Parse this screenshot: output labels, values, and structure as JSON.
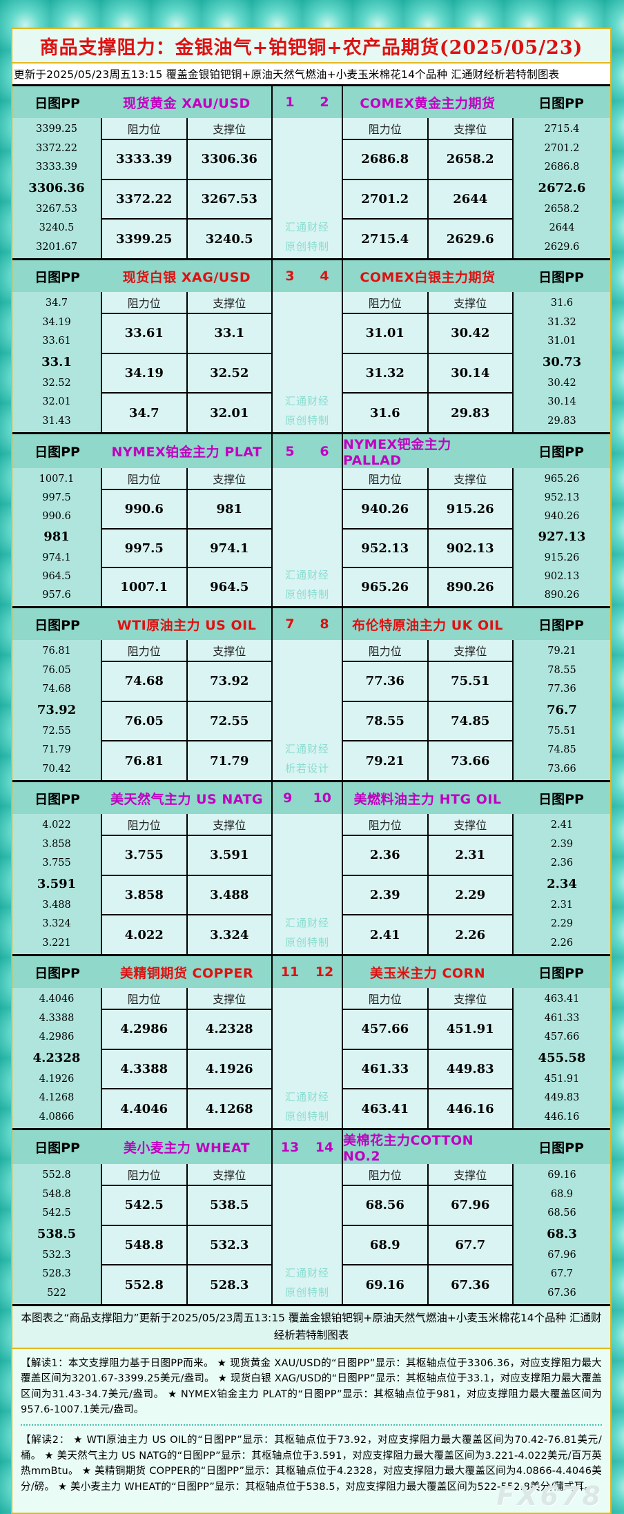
{
  "header": {
    "title": "商品支撑阻力：金银油气+铂钯铜+农产品期货(2025/05/23)",
    "subtitle": "更新于2025/05/23周五13:15  覆盖金银铂钯铜+原油天然气燃油+小麦玉米棉花14个品种  汇通财经析若特制图表"
  },
  "labels": {
    "pp": "日图PP",
    "resistance": "阻力位",
    "support": "支撑位"
  },
  "colors": {
    "accent_magenta": "#c000c0",
    "accent_red": "#dd1111",
    "header_strip": "#8fd8ca",
    "pp_column": "#b0e5dd",
    "cell": "#d9f4f2",
    "watermark": "#8adcd0",
    "gold_border": "#e3b71e"
  },
  "chart_data": {
    "type": "table",
    "title": "商品支撑阻力：金银油气+铂钯铜+农产品期货(2025/05/23)",
    "updated": "2025/05/23周五13:15",
    "sections": [
      {
        "index_left": "1",
        "index_right": "2",
        "accent": "#c000c0",
        "watermark": [
          "汇通财经",
          "原创特制"
        ],
        "left": {
          "title": "现货黄金 XAU/USD",
          "pp": [
            "3399.25",
            "3372.22",
            "3333.39",
            "3306.36",
            "3267.53",
            "3240.5",
            "3201.67"
          ],
          "rows": [
            [
              "3333.39",
              "3306.36"
            ],
            [
              "3372.22",
              "3267.53"
            ],
            [
              "3399.25",
              "3240.5"
            ]
          ]
        },
        "right": {
          "title": "COMEX黄金主力期货",
          "pp": [
            "2715.4",
            "2701.2",
            "2686.8",
            "2672.6",
            "2658.2",
            "2644",
            "2629.6"
          ],
          "rows": [
            [
              "2686.8",
              "2658.2"
            ],
            [
              "2701.2",
              "2644"
            ],
            [
              "2715.4",
              "2629.6"
            ]
          ]
        }
      },
      {
        "index_left": "3",
        "index_right": "4",
        "accent": "#dd1111",
        "watermark": [
          "汇通财经",
          "原创特制"
        ],
        "left": {
          "title": "现货白银 XAG/USD",
          "pp": [
            "34.7",
            "34.19",
            "33.61",
            "33.1",
            "32.52",
            "32.01",
            "31.43"
          ],
          "rows": [
            [
              "33.61",
              "33.1"
            ],
            [
              "34.19",
              "32.52"
            ],
            [
              "34.7",
              "32.01"
            ]
          ]
        },
        "right": {
          "title": "COMEX白银主力期货",
          "pp": [
            "31.6",
            "31.32",
            "31.01",
            "30.73",
            "30.42",
            "30.14",
            "29.83"
          ],
          "rows": [
            [
              "31.01",
              "30.42"
            ],
            [
              "31.32",
              "30.14"
            ],
            [
              "31.6",
              "29.83"
            ]
          ]
        }
      },
      {
        "index_left": "5",
        "index_right": "6",
        "accent": "#c000c0",
        "watermark": [
          "汇通财经",
          "原创特制"
        ],
        "left": {
          "title": "NYMEX铂金主力 PLAT",
          "pp": [
            "1007.1",
            "997.5",
            "990.6",
            "981",
            "974.1",
            "964.5",
            "957.6"
          ],
          "rows": [
            [
              "990.6",
              "981"
            ],
            [
              "997.5",
              "974.1"
            ],
            [
              "1007.1",
              "964.5"
            ]
          ]
        },
        "right": {
          "title": "NYMEX钯金主力 PALLAD",
          "pp": [
            "965.26",
            "952.13",
            "940.26",
            "927.13",
            "915.26",
            "902.13",
            "890.26"
          ],
          "rows": [
            [
              "940.26",
              "915.26"
            ],
            [
              "952.13",
              "902.13"
            ],
            [
              "965.26",
              "890.26"
            ]
          ]
        }
      },
      {
        "index_left": "7",
        "index_right": "8",
        "accent": "#dd1111",
        "watermark": [
          "汇通财经",
          "析若设计"
        ],
        "left": {
          "title": "WTI原油主力 US OIL",
          "pp": [
            "76.81",
            "76.05",
            "74.68",
            "73.92",
            "72.55",
            "71.79",
            "70.42"
          ],
          "rows": [
            [
              "74.68",
              "73.92"
            ],
            [
              "76.05",
              "72.55"
            ],
            [
              "76.81",
              "71.79"
            ]
          ]
        },
        "right": {
          "title": "布伦特原油主力 UK OIL",
          "pp": [
            "79.21",
            "78.55",
            "77.36",
            "76.7",
            "75.51",
            "74.85",
            "73.66"
          ],
          "rows": [
            [
              "77.36",
              "75.51"
            ],
            [
              "78.55",
              "74.85"
            ],
            [
              "79.21",
              "73.66"
            ]
          ]
        }
      },
      {
        "index_left": "9",
        "index_right": "10",
        "accent": "#c000c0",
        "watermark": [
          "汇通财经",
          "原创特制"
        ],
        "left": {
          "title": "美天然气主力 US NATG",
          "pp": [
            "4.022",
            "3.858",
            "3.755",
            "3.591",
            "3.488",
            "3.324",
            "3.221"
          ],
          "rows": [
            [
              "3.755",
              "3.591"
            ],
            [
              "3.858",
              "3.488"
            ],
            [
              "4.022",
              "3.324"
            ]
          ]
        },
        "right": {
          "title": "美燃料油主力 HTG OIL",
          "pp": [
            "2.41",
            "2.39",
            "2.36",
            "2.34",
            "2.31",
            "2.29",
            "2.26"
          ],
          "rows": [
            [
              "2.36",
              "2.31"
            ],
            [
              "2.39",
              "2.29"
            ],
            [
              "2.41",
              "2.26"
            ]
          ]
        }
      },
      {
        "index_left": "11",
        "index_right": "12",
        "accent": "#dd1111",
        "watermark": [
          "汇通财经",
          "原创特制"
        ],
        "left": {
          "title": "美精铜期货 COPPER",
          "pp": [
            "4.4046",
            "4.3388",
            "4.2986",
            "4.2328",
            "4.1926",
            "4.1268",
            "4.0866"
          ],
          "rows": [
            [
              "4.2986",
              "4.2328"
            ],
            [
              "4.3388",
              "4.1926"
            ],
            [
              "4.4046",
              "4.1268"
            ]
          ]
        },
        "right": {
          "title": "美玉米主力 CORN",
          "pp": [
            "463.41",
            "461.33",
            "457.66",
            "455.58",
            "451.91",
            "449.83",
            "446.16"
          ],
          "rows": [
            [
              "457.66",
              "451.91"
            ],
            [
              "461.33",
              "449.83"
            ],
            [
              "463.41",
              "446.16"
            ]
          ]
        }
      },
      {
        "index_left": "13",
        "index_right": "14",
        "accent": "#c000c0",
        "watermark": [
          "汇通财经",
          "原创特制"
        ],
        "left": {
          "title": "美小麦主力 WHEAT",
          "pp": [
            "552.8",
            "548.8",
            "542.5",
            "538.5",
            "532.3",
            "528.3",
            "522"
          ],
          "rows": [
            [
              "542.5",
              "538.5"
            ],
            [
              "548.8",
              "532.3"
            ],
            [
              "552.8",
              "528.3"
            ]
          ]
        },
        "right": {
          "title": "美棉花主力COTTON NO.2",
          "pp": [
            "69.16",
            "68.9",
            "68.56",
            "68.3",
            "67.96",
            "67.7",
            "67.36"
          ],
          "rows": [
            [
              "68.56",
              "67.96"
            ],
            [
              "68.9",
              "67.7"
            ],
            [
              "69.16",
              "67.36"
            ]
          ]
        }
      }
    ]
  },
  "footer": {
    "summary": "本图表之“商品支撑阻力”更新于2025/05/23周五13:15  覆盖金银铂钯铜+原油天然气燃油+小麦玉米棉花14个品种  汇通财经析若特制图表"
  },
  "notes": {
    "note1": "【解读1：本文支撑阻力基于日图PP而来。 ★ 现货黄金 XAU/USD的“日图PP”显示：其枢轴点位于3306.36，对应支撑阻力最大覆盖区间为3201.67-3399.25美元/盎司。 ★ 现货白银 XAG/USD的“日图PP”显示：其枢轴点位于33.1，对应支撑阻力最大覆盖区间为31.43-34.7美元/盎司。 ★ NYMEX铂金主力 PLAT的“日图PP”显示：其枢轴点位于981，对应支撑阻力最大覆盖区间为957.6-1007.1美元/盎司。",
    "note2": "【解读2： ★ WTI原油主力 US OIL的“日图PP”显示：其枢轴点位于73.92，对应支撑阻力最大覆盖区间为70.42-76.81美元/桶。 ★ 美天然气主力 US NATG的“日图PP”显示：其枢轴点位于3.591，对应支撑阻力最大覆盖区间为3.221-4.022美元/百万英热mmBtu。 ★ 美精铜期货 COPPER的“日图PP”显示：其枢轴点位于4.2328，对应支撑阻力最大覆盖区间为4.0866-4.4046美分/磅。 ★ 美小麦主力 WHEAT的“日图PP”显示：其枢轴点位于538.5，对应支撑阻力最大覆盖区间为522-552.8美分/蒲式耳。"
  },
  "brand": "FX678"
}
